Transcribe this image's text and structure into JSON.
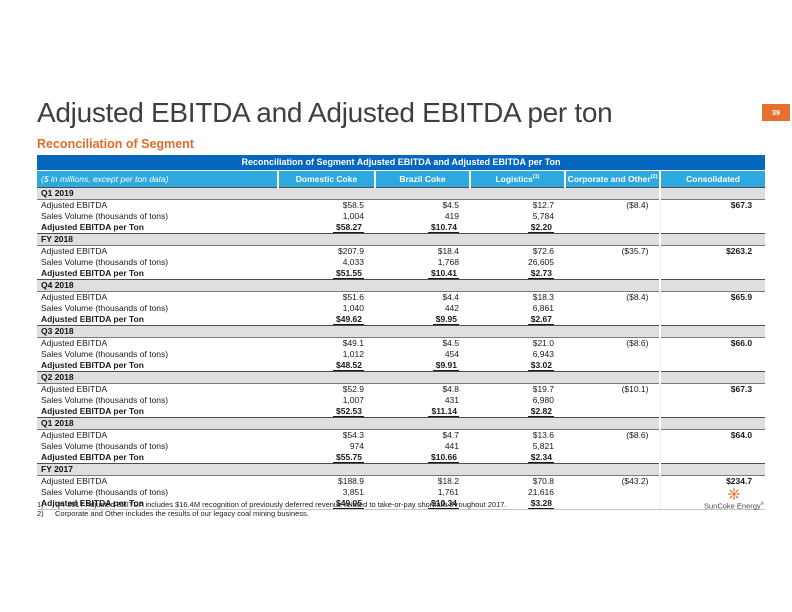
{
  "page_number": "39",
  "title": "Adjusted EBITDA and Adjusted EBITDA per ton",
  "subtitle": "Reconciliation of Segment",
  "colors": {
    "header_blue": "#0767BE",
    "subheader_blue": "#2EA9E0",
    "accent_orange": "#E8702E",
    "section_band_gray": "#DFDFDF",
    "title_gray": "#3f3f3f"
  },
  "table": {
    "title": "Reconciliation of Segment Adjusted EBITDA and Adjusted EBITDA per Ton",
    "caption": "($ in millions, except per ton data)",
    "columns": [
      "Domestic Coke",
      "Brazil Coke",
      "Logistics",
      "Corporate and Other",
      "Consolidated"
    ],
    "column_superscripts": [
      "",
      "",
      "(1)",
      "(2)",
      ""
    ],
    "row_labels": [
      "Adjusted EBITDA",
      "Sales Volume (thousands of tons)",
      "Adjusted EBITDA per Ton"
    ],
    "sections": [
      {
        "period": "Q1 2019",
        "adjusted_ebitda": [
          "$58.5",
          "$4.5",
          "$12.7",
          "($8.4)",
          "$67.3"
        ],
        "sales_volume": [
          "1,004",
          "419",
          "5,784",
          "",
          ""
        ],
        "ebitda_per_ton": [
          "$58.27",
          "$10.74",
          "$2.20",
          "",
          ""
        ]
      },
      {
        "period": "FY 2018",
        "adjusted_ebitda": [
          "$207.9",
          "$18.4",
          "$72.6",
          "($35.7)",
          "$263.2"
        ],
        "sales_volume": [
          "4,033",
          "1,768",
          "26,605",
          "",
          ""
        ],
        "ebitda_per_ton": [
          "$51.55",
          "$10.41",
          "$2.73",
          "",
          ""
        ]
      },
      {
        "period": "Q4 2018",
        "adjusted_ebitda": [
          "$51.6",
          "$4.4",
          "$18.3",
          "($8.4)",
          "$65.9"
        ],
        "sales_volume": [
          "1,040",
          "442",
          "6,861",
          "",
          ""
        ],
        "ebitda_per_ton": [
          "$49.62",
          "$9.95",
          "$2.67",
          "",
          ""
        ]
      },
      {
        "period": "Q3 2018",
        "adjusted_ebitda": [
          "$49.1",
          "$4.5",
          "$21.0",
          "($8.6)",
          "$66.0"
        ],
        "sales_volume": [
          "1,012",
          "454",
          "6,943",
          "",
          ""
        ],
        "ebitda_per_ton": [
          "$48.52",
          "$9.91",
          "$3.02",
          "",
          ""
        ]
      },
      {
        "period": "Q2 2018",
        "adjusted_ebitda": [
          "$52.9",
          "$4.8",
          "$19.7",
          "($10.1)",
          "$67.3"
        ],
        "sales_volume": [
          "1,007",
          "431",
          "6,980",
          "",
          ""
        ],
        "ebitda_per_ton": [
          "$52.53",
          "$11.14",
          "$2.82",
          "",
          ""
        ]
      },
      {
        "period": "Q1 2018",
        "adjusted_ebitda": [
          "$54.3",
          "$4.7",
          "$13.6",
          "($8.6)",
          "$64.0"
        ],
        "sales_volume": [
          "974",
          "441",
          "5,821",
          "",
          ""
        ],
        "ebitda_per_ton": [
          "$55.75",
          "$10.66",
          "$2.34",
          "",
          ""
        ]
      },
      {
        "period": "FY 2017",
        "adjusted_ebitda": [
          "$188.9",
          "$18.2",
          "$70.8",
          "($43.2)",
          "$234.7"
        ],
        "sales_volume": [
          "3,851",
          "1,761",
          "21,616",
          "",
          ""
        ],
        "ebitda_per_ton": [
          "$49.05",
          "$10.34",
          "$3.28",
          "",
          ""
        ]
      }
    ]
  },
  "footnotes": [
    {
      "num": "1)",
      "text": "Q4 2017 Adjusted EBITDA includes $16.4M recognition of previously deferred revenue related to take-or-pay shortfalls throughout 2017."
    },
    {
      "num": "2)",
      "text": "Corporate and Other includes the results of our legacy coal mining business."
    }
  ],
  "logo": {
    "text": "SunCoke Energy",
    "registered": "®"
  }
}
